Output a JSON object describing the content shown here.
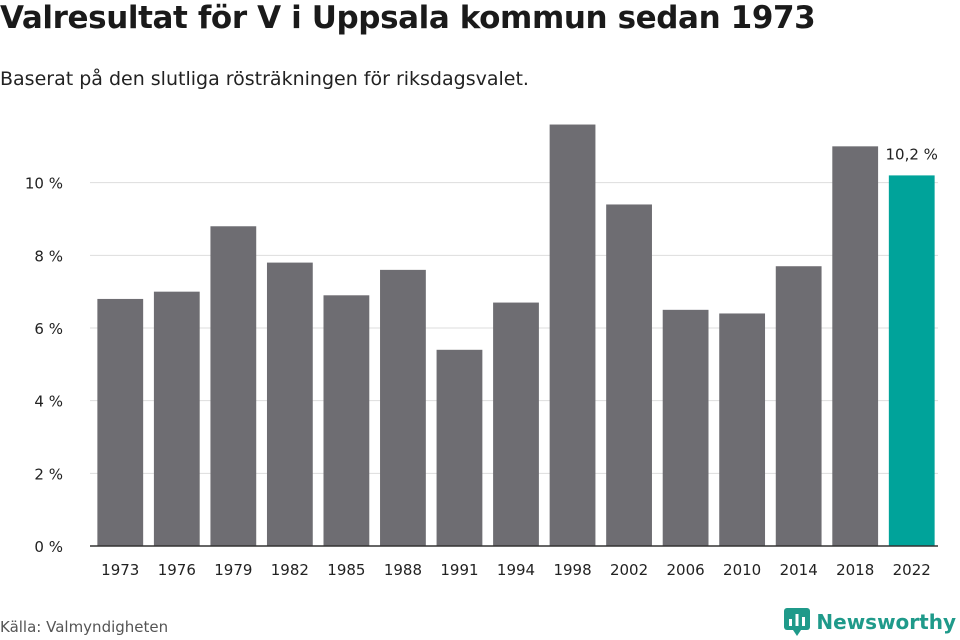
{
  "title": "Valresultat för V i Uppsala kommun sedan 1973",
  "subtitle": "Baserat på den slutliga rösträkningen för riksdagsvalet.",
  "source": "Källa: Valmyndigheten",
  "brand": {
    "name": "Newsworthy",
    "icon": "newsworthy-logo-icon",
    "color": "#1f9a8a"
  },
  "chart_data": {
    "type": "bar",
    "categories": [
      "1973",
      "1976",
      "1979",
      "1982",
      "1985",
      "1988",
      "1991",
      "1994",
      "1998",
      "2002",
      "2006",
      "2010",
      "2014",
      "2018",
      "2022"
    ],
    "values": [
      6.8,
      7.0,
      8.8,
      7.8,
      6.9,
      7.6,
      5.4,
      6.7,
      11.6,
      9.4,
      6.5,
      6.4,
      7.7,
      11.0,
      10.2
    ],
    "ylim": [
      0,
      12
    ],
    "yticks": [
      0,
      2,
      4,
      6,
      8,
      10
    ],
    "ytick_labels": [
      "0 %",
      "2 %",
      "4 %",
      "6 %",
      "8 %",
      "10 %"
    ],
    "grid": true,
    "colors": {
      "default": "#6e6d72",
      "highlight": "#00a39a",
      "grid": "#dddddd",
      "axis": "#333333"
    },
    "highlight_index": 14,
    "annotations": [
      {
        "index": 14,
        "text": "10,2 %"
      }
    ]
  }
}
